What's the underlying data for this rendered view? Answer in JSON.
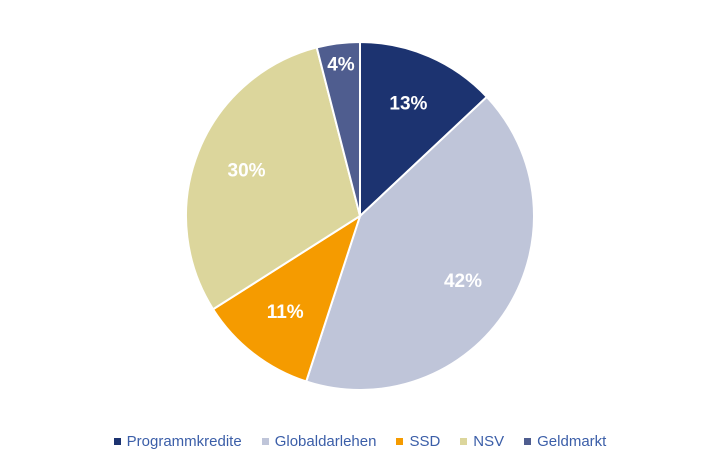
{
  "chart_data": {
    "type": "pie",
    "categories": [
      "Programmkredite",
      "Globaldarlehen",
      "SSD",
      "NSV",
      "Geldmarkt"
    ],
    "values": [
      13,
      42,
      11,
      30,
      4
    ],
    "labels": [
      "13%",
      "42%",
      "11%",
      "30%",
      "4%"
    ],
    "colors": [
      "#1c3370",
      "#bfc5d9",
      "#f59b00",
      "#dcd69c",
      "#4f5d8f"
    ],
    "legend_position": "bottom",
    "start_angle": "12 o'clock",
    "direction": "clockwise"
  }
}
